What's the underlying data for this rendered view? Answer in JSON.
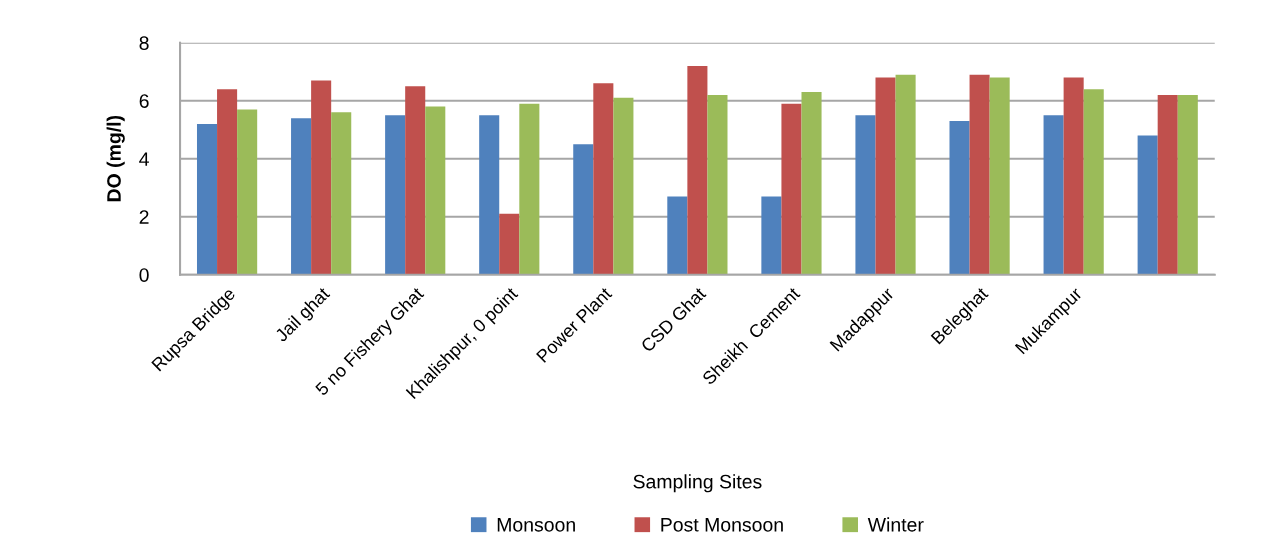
{
  "chart_data": {
    "type": "bar",
    "xlabel": "Sampling Sites",
    "ylabel": "DO (mg/l)",
    "categories": [
      "Rupsa Bridge",
      "Jail ghat",
      "5 no Fishery Ghat",
      "Khalishpur, 0 point",
      "Power Plant",
      "CSD Ghat",
      "Sheikh  Cement",
      "Madappur",
      "Beleghat",
      "Mukampur",
      null
    ],
    "series": [
      {
        "name": "Monsoon",
        "color": "#4f81bd",
        "values": [
          5.2,
          5.4,
          5.5,
          5.5,
          4.5,
          2.7,
          2.7,
          5.5,
          5.3,
          5.5,
          4.8
        ]
      },
      {
        "name": "Post Monsoon",
        "color": "#c0504d",
        "values": [
          6.4,
          6.7,
          6.5,
          2.1,
          6.6,
          7.2,
          5.9,
          6.8,
          6.9,
          6.8,
          6.2
        ]
      },
      {
        "name": "Winter",
        "color": "#9bbb59",
        "values": [
          5.7,
          5.6,
          5.8,
          5.9,
          6.1,
          6.2,
          6.3,
          6.9,
          6.8,
          6.4,
          6.2
        ]
      }
    ],
    "ylim": [
      0,
      8
    ],
    "yticks": [
      0,
      2,
      4,
      6,
      8
    ],
    "grid": "y",
    "legend": "bottom"
  }
}
